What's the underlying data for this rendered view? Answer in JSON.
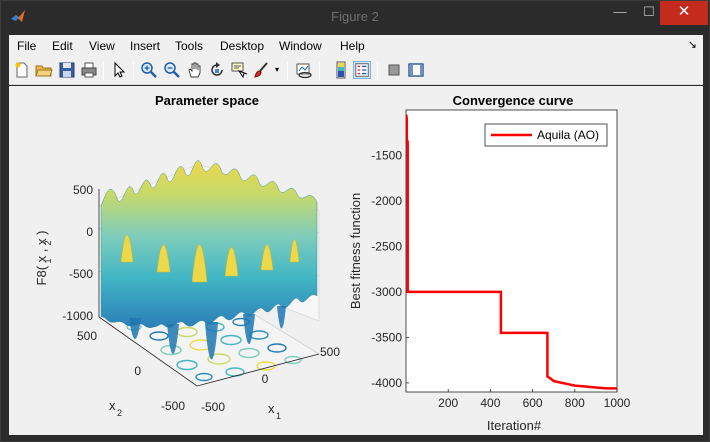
{
  "window": {
    "title": "Figure 2",
    "minimize": "—",
    "maximize": "☐",
    "close": "✕"
  },
  "menu": {
    "items": [
      "File",
      "Edit",
      "View",
      "Insert",
      "Tools",
      "Desktop",
      "Window",
      "Help"
    ],
    "dock": "↘"
  },
  "toolbar": {
    "icons": [
      "new-figure-icon",
      "open-file-icon",
      "save-icon",
      "print-icon",
      "edit-plot-arrow-icon",
      "zoom-in-icon",
      "zoom-out-icon",
      "pan-hand-icon",
      "rotate-3d-icon",
      "data-cursor-icon",
      "brush-icon",
      "brush-dropdown-icon",
      "link-plot-icon",
      "insert-colorbar-icon",
      "insert-legend-icon",
      "hide-plot-tools-icon",
      "show-plot-tools-icon"
    ]
  },
  "chart_data": [
    {
      "type": "surface",
      "title": "Parameter space",
      "zlabel": "F8( x , x )",
      "zlabel_subscripts": [
        "1",
        "2"
      ],
      "xlabel": "x",
      "xlabel_sub": "1",
      "ylabel": "x",
      "ylabel_sub": "2",
      "zticks": [
        "500",
        "0",
        "-500",
        "-1000"
      ],
      "zlim": [
        -1000,
        500
      ],
      "x_ticks": [
        "-500",
        "0",
        "500"
      ],
      "y_ticks": [
        "-500",
        "0",
        "500"
      ],
      "xlim": [
        -500,
        500
      ],
      "ylim": [
        -500,
        500
      ],
      "colormap": [
        "#2c7fb8",
        "#41b6c4",
        "#7fcdbb",
        "#c7e9b4",
        "#edd84a"
      ],
      "contour_projection": true
    },
    {
      "type": "line",
      "title": "Convergence curve",
      "xlabel": "Iteration#",
      "ylabel": "Best fitness function",
      "xlim": [
        0,
        1000
      ],
      "ylim": [
        -4100,
        -1000
      ],
      "xticks": [
        "200",
        "400",
        "600",
        "800",
        "1000"
      ],
      "xtick_values": [
        200,
        400,
        600,
        800,
        1000
      ],
      "yticks": [
        "-1500",
        "-2000",
        "-2500",
        "-3000",
        "-3500",
        "-4000"
      ],
      "ytick_values": [
        -1500,
        -2000,
        -2500,
        -3000,
        -3500,
        -4000
      ],
      "legend": {
        "placement": "top-right",
        "entries": [
          "Aquila (AO)"
        ]
      },
      "series": [
        {
          "name": "Aquila (AO)",
          "color": "#ff0000",
          "x": [
            1,
            4,
            4,
            8,
            8,
            450,
            450,
            670,
            670,
            690,
            700,
            720,
            760,
            800,
            850,
            900,
            950,
            1000
          ],
          "y": [
            -1050,
            -1100,
            -1350,
            -1350,
            -3000,
            -3000,
            -3450,
            -3450,
            -3930,
            -3960,
            -3980,
            -3990,
            -4010,
            -4030,
            -4040,
            -4050,
            -4060,
            -4060
          ]
        }
      ]
    }
  ]
}
